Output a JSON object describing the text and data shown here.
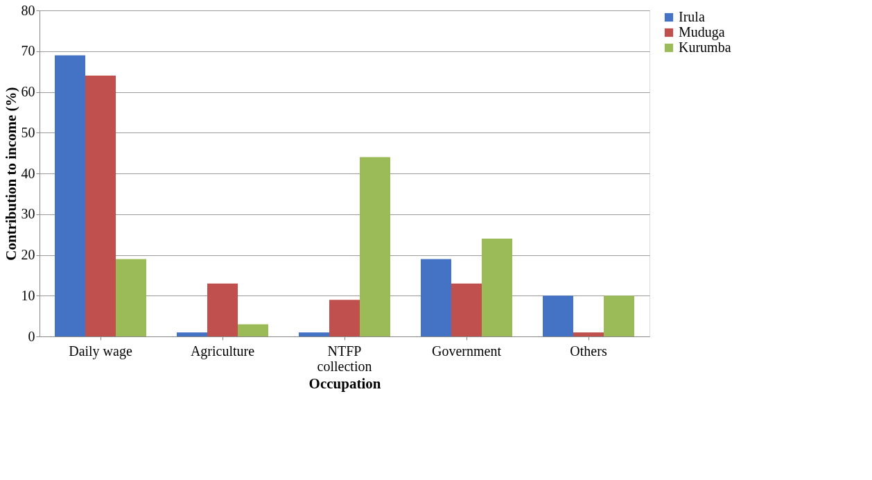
{
  "chart_data": {
    "type": "bar",
    "xlabel": "Occupation",
    "ylabel": "Contribution to income (%)",
    "categories": [
      "Daily wage",
      "Agriculture",
      "NTFP collection",
      "Government",
      "Others"
    ],
    "series": [
      {
        "name": "Irula",
        "color": "#4472c4",
        "values": [
          69,
          1,
          1,
          19,
          10
        ]
      },
      {
        "name": "Muduga",
        "color": "#c0504d",
        "values": [
          64,
          13,
          9,
          13,
          1
        ]
      },
      {
        "name": "Kurumba",
        "color": "#9bbb59",
        "values": [
          19,
          3,
          44,
          24,
          10
        ]
      }
    ],
    "ylim": [
      0,
      80
    ],
    "yticks": [
      0,
      10,
      20,
      30,
      40,
      50,
      60,
      70,
      80
    ],
    "grid": "y",
    "legend": "right"
  }
}
